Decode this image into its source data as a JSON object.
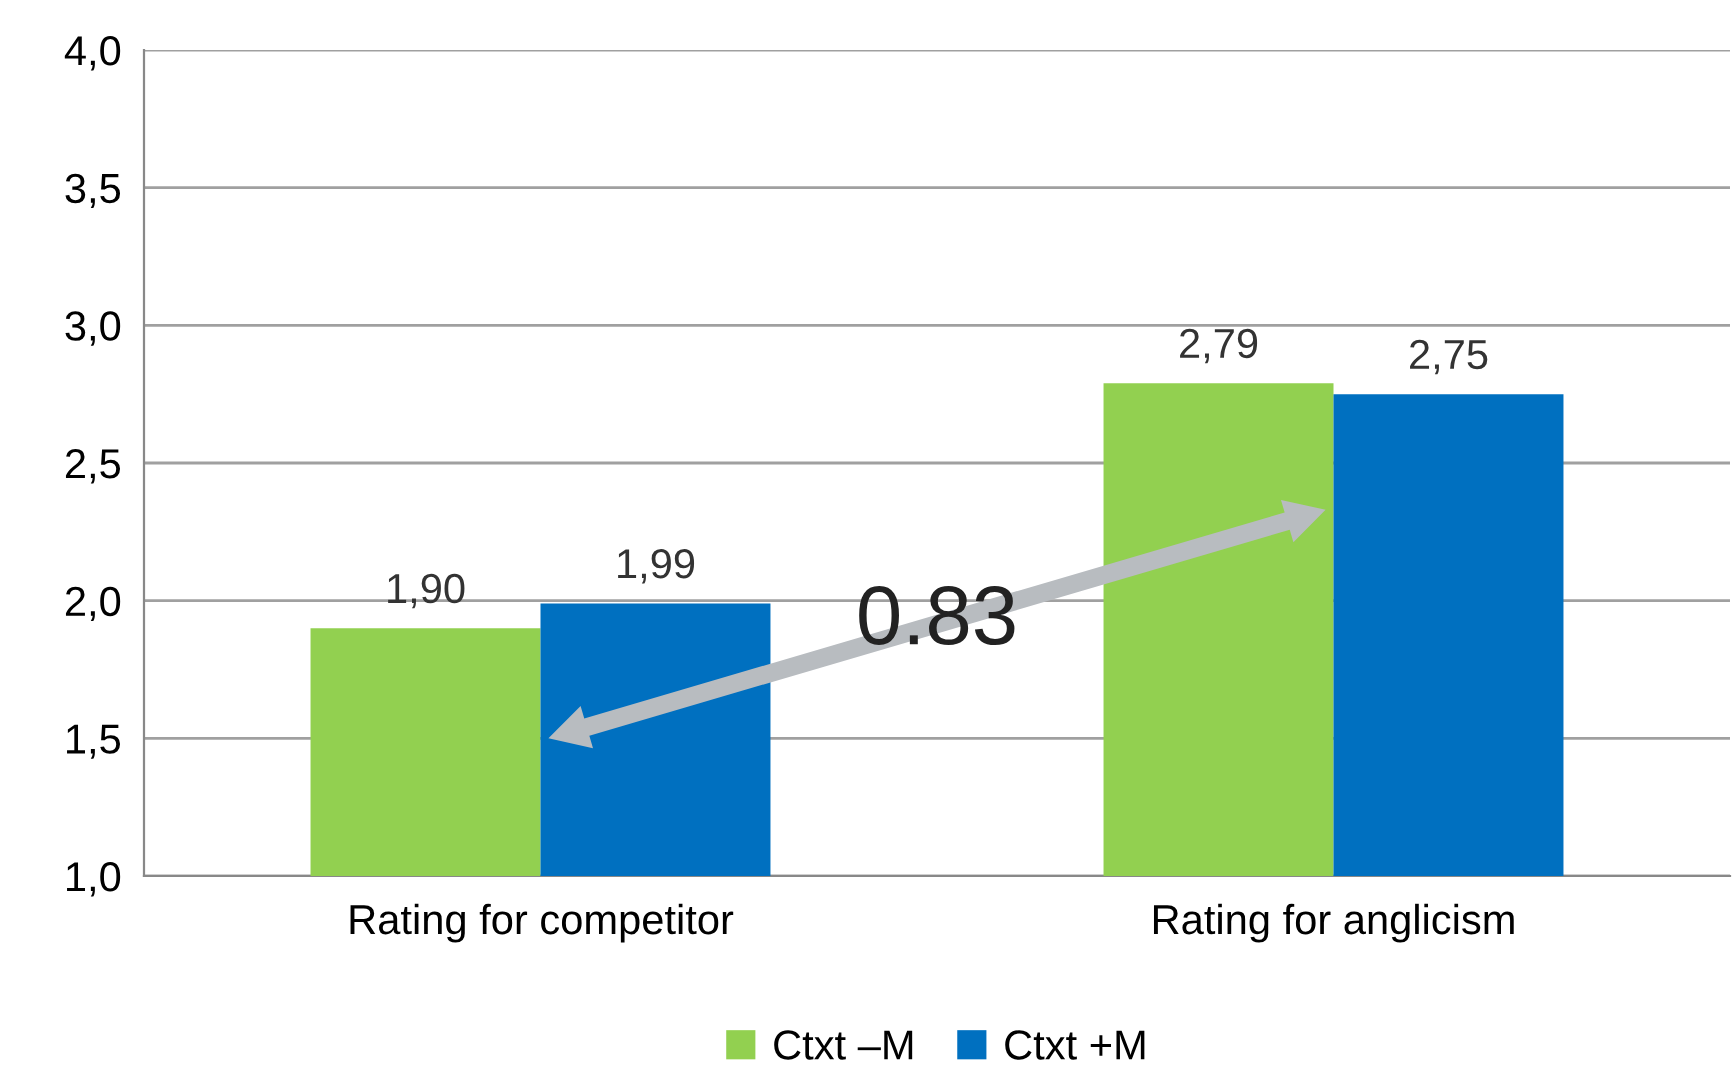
{
  "chart_data": {
    "type": "bar",
    "categories": [
      "Rating for competitor",
      "Rating for anglicism"
    ],
    "series": [
      {
        "name": "Ctxt –M",
        "color": "#92d050",
        "values": [
          1.9,
          2.79
        ],
        "value_labels": [
          "1,90",
          "2,79"
        ]
      },
      {
        "name": "Ctxt +M",
        "color": "#0070c0",
        "values": [
          1.99,
          2.75
        ],
        "value_labels": [
          "1,99",
          "2,75"
        ]
      }
    ],
    "ylim": [
      1.0,
      4.0
    ],
    "yticks": [
      {
        "value": 1.0,
        "label": "1,0"
      },
      {
        "value": 1.5,
        "label": "1,5"
      },
      {
        "value": 2.0,
        "label": "2,0"
      },
      {
        "value": 2.5,
        "label": "2,5"
      },
      {
        "value": 3.0,
        "label": "3,0"
      },
      {
        "value": 3.5,
        "label": "3,5"
      },
      {
        "value": 4.0,
        "label": "4,0"
      }
    ],
    "annotations": [
      "0.83"
    ],
    "grid": "y",
    "legend": "bottom"
  }
}
